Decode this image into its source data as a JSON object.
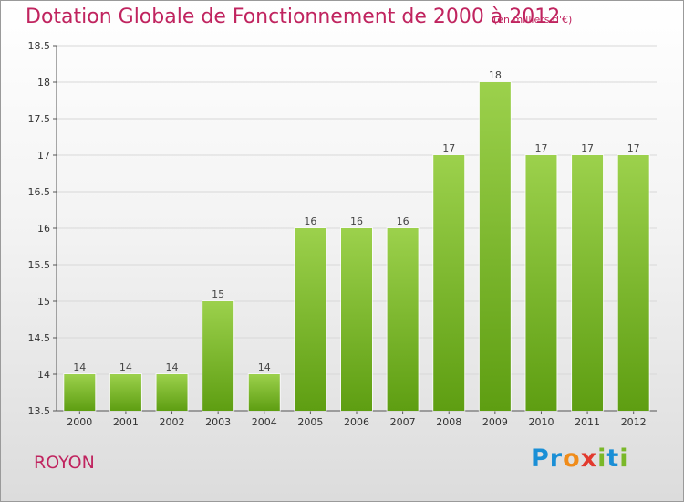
{
  "header": {
    "title": "Dotation Globale de Fonctionnement de 2000 à 2012",
    "subtitle": "(en milliers d'€)"
  },
  "footer": {
    "place": "ROYON",
    "brand_letters": [
      {
        "char": "P",
        "color": "#1a8fd6"
      },
      {
        "char": "r",
        "color": "#1a8fd6"
      },
      {
        "char": "o",
        "color": "#f08c1a"
      },
      {
        "char": "x",
        "color": "#e23a2e"
      },
      {
        "char": "i",
        "color": "#7ab829"
      },
      {
        "char": "t",
        "color": "#1a8fd6"
      },
      {
        "char": "i",
        "color": "#7ab829"
      }
    ]
  },
  "colors": {
    "title": "#c0245f",
    "bar_top": "#9cd14c",
    "bar_bottom": "#5e9e12",
    "grid": "#d8d8d8"
  },
  "chart_data": {
    "type": "bar",
    "title": "Dotation Globale de Fonctionnement de 2000 à 2012",
    "subtitle": "(en milliers d'€)",
    "categories": [
      "2000",
      "2001",
      "2002",
      "2003",
      "2004",
      "2005",
      "2006",
      "2007",
      "2008",
      "2009",
      "2010",
      "2011",
      "2012"
    ],
    "values": [
      14,
      14,
      14,
      15,
      14,
      16,
      16,
      16,
      17,
      18,
      17,
      17,
      17
    ],
    "ylim": [
      13.5,
      18.5
    ],
    "yticks": [
      13.5,
      14,
      14.5,
      15,
      15.5,
      16,
      16.5,
      17,
      17.5,
      18,
      18.5
    ],
    "grid": true,
    "data_labels": true
  }
}
